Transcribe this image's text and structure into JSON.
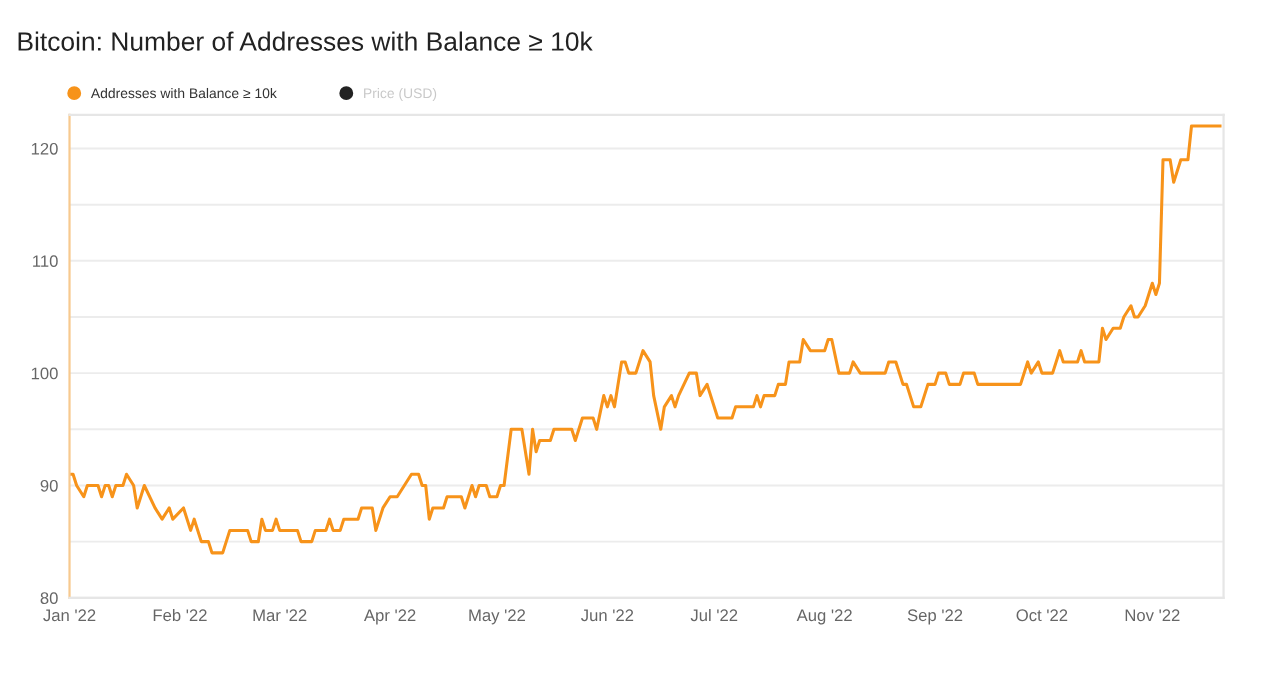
{
  "chart_data": {
    "type": "line",
    "title": "Bitcoin: Number of Addresses with Balance ≥ 10k",
    "series": [
      {
        "name": "Addresses with Balance ≥ 10k",
        "color": "#f7931a",
        "x": [
          "2022-01-01",
          "2022-01-02",
          "2022-01-03",
          "2022-01-05",
          "2022-01-06",
          "2022-01-09",
          "2022-01-10",
          "2022-01-11",
          "2022-01-12",
          "2022-01-13",
          "2022-01-14",
          "2022-01-16",
          "2022-01-17",
          "2022-01-19",
          "2022-01-20",
          "2022-01-22",
          "2022-01-25",
          "2022-01-27",
          "2022-01-29",
          "2022-01-30",
          "2022-02-02",
          "2022-02-04",
          "2022-02-05",
          "2022-02-07",
          "2022-02-09",
          "2022-02-10",
          "2022-02-13",
          "2022-02-15",
          "2022-02-20",
          "2022-02-21",
          "2022-02-23",
          "2022-02-24",
          "2022-02-25",
          "2022-02-27",
          "2022-02-28",
          "2022-03-01",
          "2022-03-06",
          "2022-03-07",
          "2022-03-10",
          "2022-03-11",
          "2022-03-14",
          "2022-03-15",
          "2022-03-16",
          "2022-03-18",
          "2022-03-19",
          "2022-03-23",
          "2022-03-24",
          "2022-03-27",
          "2022-03-28",
          "2022-03-30",
          "2022-04-01",
          "2022-04-03",
          "2022-04-05",
          "2022-04-07",
          "2022-04-09",
          "2022-04-10",
          "2022-04-11",
          "2022-04-12",
          "2022-04-13",
          "2022-04-16",
          "2022-04-17",
          "2022-04-21",
          "2022-04-22",
          "2022-04-24",
          "2022-04-25",
          "2022-04-26",
          "2022-04-28",
          "2022-04-29",
          "2022-05-01",
          "2022-05-02",
          "2022-05-03",
          "2022-05-05",
          "2022-05-08",
          "2022-05-09",
          "2022-05-10",
          "2022-05-11",
          "2022-05-12",
          "2022-05-13",
          "2022-05-16",
          "2022-05-17",
          "2022-05-22",
          "2022-05-23",
          "2022-05-25",
          "2022-05-28",
          "2022-05-29",
          "2022-05-31",
          "2022-06-01",
          "2022-06-02",
          "2022-06-03",
          "2022-06-05",
          "2022-06-06",
          "2022-06-07",
          "2022-06-09",
          "2022-06-11",
          "2022-06-13",
          "2022-06-14",
          "2022-06-16",
          "2022-06-17",
          "2022-06-19",
          "2022-06-20",
          "2022-06-21",
          "2022-06-24",
          "2022-06-26",
          "2022-06-27",
          "2022-06-29",
          "2022-07-02",
          "2022-07-06",
          "2022-07-07",
          "2022-07-12",
          "2022-07-13",
          "2022-07-14",
          "2022-07-15",
          "2022-07-18",
          "2022-07-19",
          "2022-07-21",
          "2022-07-22",
          "2022-07-25",
          "2022-07-26",
          "2022-07-28",
          "2022-08-01",
          "2022-08-02",
          "2022-08-03",
          "2022-08-05",
          "2022-08-08",
          "2022-08-09",
          "2022-08-11",
          "2022-08-18",
          "2022-08-19",
          "2022-08-21",
          "2022-08-23",
          "2022-08-24",
          "2022-08-26",
          "2022-08-28",
          "2022-08-30",
          "2022-09-01",
          "2022-09-02",
          "2022-09-04",
          "2022-09-05",
          "2022-09-08",
          "2022-09-09",
          "2022-09-12",
          "2022-09-13",
          "2022-09-25",
          "2022-09-27",
          "2022-09-28",
          "2022-09-30",
          "2022-10-01",
          "2022-10-04",
          "2022-10-06",
          "2022-10-07",
          "2022-10-11",
          "2022-10-12",
          "2022-10-13",
          "2022-10-17",
          "2022-10-18",
          "2022-10-19",
          "2022-10-21",
          "2022-10-23",
          "2022-10-24",
          "2022-10-26",
          "2022-10-27",
          "2022-10-28",
          "2022-10-30",
          "2022-10-31",
          "2022-11-01",
          "2022-11-02",
          "2022-11-03",
          "2022-11-04",
          "2022-11-06",
          "2022-11-07",
          "2022-11-09",
          "2022-11-11",
          "2022-11-12",
          "2022-11-20"
        ],
        "values": [
          91,
          91,
          90,
          89,
          90,
          90,
          89,
          90,
          90,
          89,
          90,
          90,
          91,
          90,
          88,
          90,
          88,
          87,
          88,
          87,
          88,
          86,
          87,
          85,
          85,
          84,
          84,
          86,
          86,
          85,
          85,
          87,
          86,
          86,
          87,
          86,
          86,
          85,
          85,
          86,
          86,
          87,
          86,
          86,
          87,
          87,
          88,
          88,
          86,
          88,
          89,
          89,
          90,
          91,
          91,
          90,
          90,
          87,
          88,
          88,
          89,
          89,
          88,
          90,
          89,
          90,
          90,
          89,
          89,
          90,
          90,
          95,
          95,
          93,
          91,
          95,
          93,
          94,
          94,
          95,
          95,
          94,
          96,
          96,
          95,
          98,
          97,
          98,
          97,
          101,
          101,
          100,
          100,
          102,
          101,
          98,
          95,
          97,
          98,
          97,
          98,
          100,
          100,
          98,
          99,
          96,
          96,
          97,
          97,
          98,
          97,
          98,
          98,
          99,
          99,
          101,
          101,
          103,
          102,
          102,
          103,
          103,
          100,
          100,
          101,
          100,
          100,
          101,
          101,
          99,
          99,
          97,
          97,
          99,
          99,
          100,
          100,
          99,
          99,
          100,
          100,
          99,
          99,
          101,
          100,
          101,
          100,
          100,
          102,
          101,
          101,
          102,
          101,
          101,
          104,
          103,
          104,
          104,
          105,
          106,
          105,
          105,
          106,
          107,
          108,
          107,
          108,
          119,
          119,
          117,
          119,
          119,
          122,
          122
        ]
      },
      {
        "name": "Price (USD)",
        "color": "#222222"
      }
    ],
    "xlim": [
      "2022-01-01",
      "2022-11-21"
    ],
    "xticks": [
      {
        "value": "2022-01-01",
        "label": "Jan '22"
      },
      {
        "value": "2022-02-01",
        "label": "Feb '22"
      },
      {
        "value": "2022-03-01",
        "label": "Mar '22"
      },
      {
        "value": "2022-04-01",
        "label": "Apr '22"
      },
      {
        "value": "2022-05-01",
        "label": "May '22"
      },
      {
        "value": "2022-06-01",
        "label": "Jun '22"
      },
      {
        "value": "2022-07-01",
        "label": "Jul '22"
      },
      {
        "value": "2022-08-01",
        "label": "Aug '22"
      },
      {
        "value": "2022-09-01",
        "label": "Sep '22"
      },
      {
        "value": "2022-10-01",
        "label": "Oct '22"
      },
      {
        "value": "2022-11-01",
        "label": "Nov '22"
      }
    ],
    "ylim": [
      80,
      123
    ],
    "yticks": [
      80,
      {
        "value": 85,
        "label": null
      },
      90,
      {
        "value": 95,
        "label": null
      },
      100,
      {
        "value": 105,
        "label": null
      },
      110,
      {
        "value": 115,
        "label": null
      },
      120
    ],
    "grid": "y",
    "legend": "top left"
  }
}
